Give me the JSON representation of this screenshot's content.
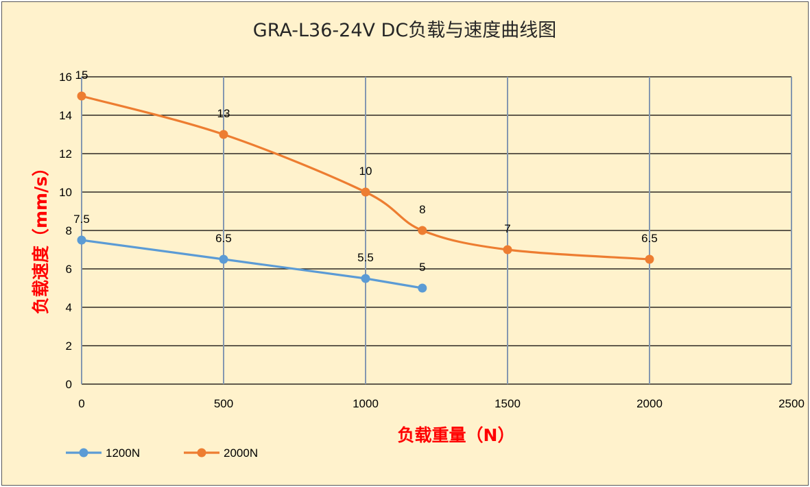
{
  "chart_data": {
    "type": "line",
    "title": "GRA-L36-24V DC负载与速度曲线图",
    "xlabel": "负载重量（N）",
    "ylabel": "负载速度（mm/s）",
    "xlim": [
      0,
      2500
    ],
    "ylim": [
      0,
      16
    ],
    "x_ticks": [
      "0",
      "500",
      "1000",
      "1500",
      "2000",
      "2500"
    ],
    "y_ticks": [
      "0",
      "2",
      "4",
      "6",
      "8",
      "10",
      "12",
      "14",
      "16"
    ],
    "grid": true,
    "legend_position": "bottom-left",
    "series": [
      {
        "name": "1200N",
        "color": "#5b9bd5",
        "smooth": false,
        "points": [
          {
            "x": 0,
            "y": 7.5,
            "label": "7.5"
          },
          {
            "x": 500,
            "y": 6.5,
            "label": "6.5"
          },
          {
            "x": 1000,
            "y": 5.5,
            "label": "5.5"
          },
          {
            "x": 1200,
            "y": 5,
            "label": "5"
          }
        ]
      },
      {
        "name": "2000N",
        "color": "#ed7d31",
        "smooth": true,
        "points": [
          {
            "x": 0,
            "y": 15,
            "label": "15"
          },
          {
            "x": 500,
            "y": 13,
            "label": "13"
          },
          {
            "x": 1000,
            "y": 10,
            "label": "10"
          },
          {
            "x": 1200,
            "y": 8,
            "label": "8"
          },
          {
            "x": 1500,
            "y": 7,
            "label": "7"
          },
          {
            "x": 2000,
            "y": 6.5,
            "label": "6.5"
          }
        ]
      }
    ]
  }
}
